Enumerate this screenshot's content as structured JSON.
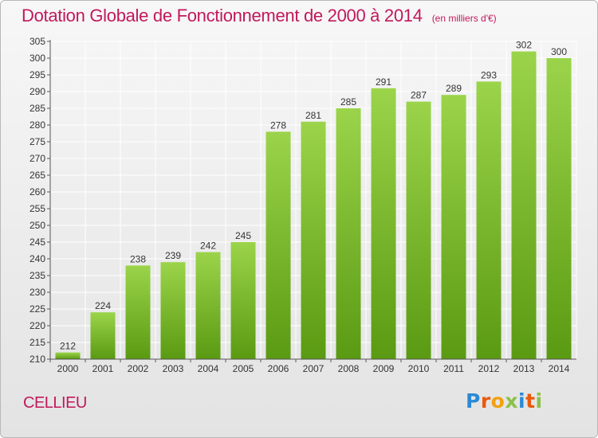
{
  "header": {
    "title": "Dotation Globale de Fonctionnement de 2000 à 2014",
    "unit": "(en milliers d'€)"
  },
  "footer": {
    "commune": "CELLIEU",
    "logo_letters": [
      "P",
      "r",
      "o",
      "x",
      "i",
      "t",
      "i"
    ],
    "logo_colors": [
      "#2a8ad6",
      "#e95a0c",
      "#f2a10f",
      "#8ac14a",
      "#2a8ad6",
      "#e95a0c",
      "#8ac14a"
    ]
  },
  "colors": {
    "title": "#c2185b",
    "bar_light": "#9bd44a",
    "bar_dark": "#5a9a12",
    "grid": "#ffffff",
    "axis": "#555555"
  },
  "chart_data": {
    "type": "bar",
    "title": "Dotation Globale de Fonctionnement de 2000 à 2014",
    "subtitle": "(en milliers d'€)",
    "xlabel": "",
    "ylabel": "",
    "categories": [
      "2000",
      "2001",
      "2002",
      "2003",
      "2004",
      "2005",
      "2006",
      "2007",
      "2008",
      "2009",
      "2010",
      "2011",
      "2012",
      "2013",
      "2014"
    ],
    "values": [
      212,
      224,
      238,
      239,
      242,
      245,
      278,
      281,
      285,
      291,
      287,
      289,
      293,
      302,
      300
    ],
    "ylim": [
      210,
      305
    ],
    "yticks": [
      210,
      215,
      220,
      225,
      230,
      235,
      240,
      245,
      250,
      255,
      260,
      265,
      270,
      275,
      280,
      285,
      290,
      295,
      300,
      305
    ],
    "grid": true,
    "legend": "none"
  }
}
